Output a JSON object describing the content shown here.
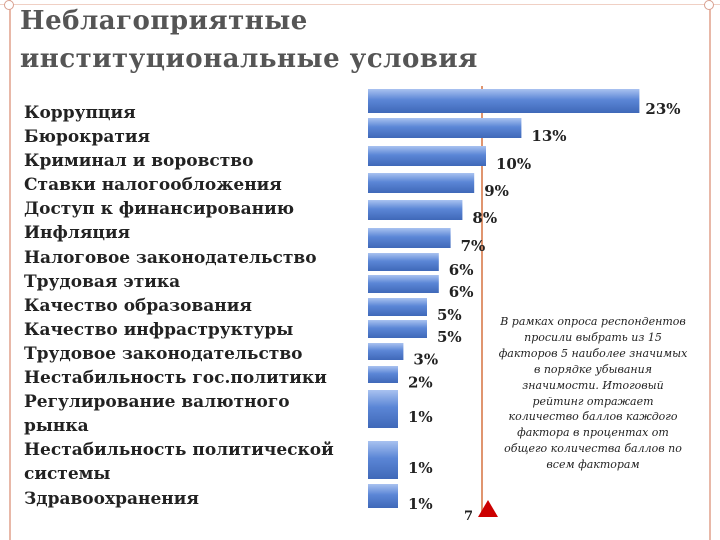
{
  "slide": {
    "title": "Неблагоприятные институциональные условия",
    "note": "В рамках опроса респондентов просили выбрать из 15 факторов 5 наиболее значимых в порядке убывания значимости. Итоговый рейтинг отражает количество баллов каждого фактора в процентах от общего количества баллов по всем факторам",
    "page_number": "7"
  },
  "factors": [
    "Коррупция",
    "Бюрократия",
    "Криминал и воровство",
    "Ставки налогообложения",
    "Доступ к финансированию",
    "Инфляция",
    "Налоговое законодательство",
    "Трудовая этика",
    "Качество образования",
    "Качество инфраструктуры",
    "Трудовое законодательство",
    "Нестабильность гос.политики",
    "Регулирование валютного",
    "рынка",
    "Нестабильность политической",
    "системы",
    "Здравоохранения"
  ],
  "chart_data": {
    "type": "bar",
    "orientation": "horizontal",
    "categories": [
      "Коррупция",
      "Бюрократия",
      "Криминал и воровство",
      "Ставки налогообложения",
      "Доступ к финансированию",
      "Инфляция",
      "Налоговое законодательство",
      "Трудовая этика",
      "Качество образования",
      "Качество инфраструктуры",
      "Трудовое законодательство",
      "Нестабильность гос.политики",
      "Регулирование валютного рынка",
      "Нестабильность политической системы",
      "Здравоохранения"
    ],
    "values": [
      23,
      13,
      10,
      9,
      8,
      7,
      6,
      6,
      5,
      5,
      3,
      2,
      1,
      1,
      1
    ],
    "data_labels": [
      "23%",
      "13%",
      "10%",
      "9%",
      "8%",
      "7%",
      "6%",
      "6%",
      "5%",
      "5%",
      "3%",
      "2%",
      "1%",
      "1%",
      "1%"
    ],
    "bar_color": "#5b86d6",
    "reference_line_color": "#e0956f",
    "marker_color": "#cc0000"
  }
}
